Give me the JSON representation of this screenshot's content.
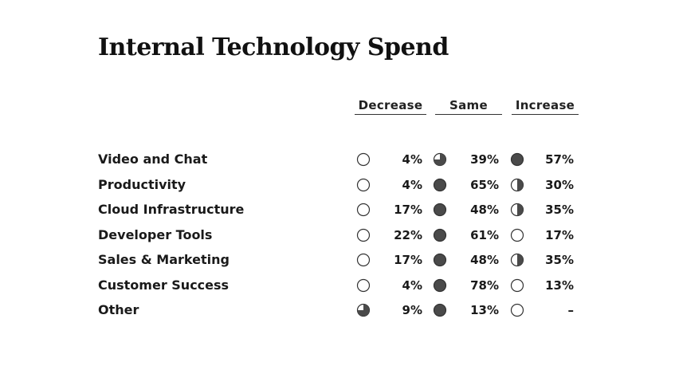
{
  "title": "Internal Technology Spend",
  "columns": [
    "Decrease",
    "Same",
    "Increase"
  ],
  "colors": {
    "fill": "#4a4a4a",
    "stroke": "#333333"
  },
  "chart_data": {
    "type": "table",
    "title": "Internal Technology Spend",
    "columns": [
      "Decrease",
      "Same",
      "Increase"
    ],
    "rows": [
      {
        "label": "Video and Chat",
        "values": [
          "4%",
          "39%",
          "57%"
        ],
        "icons": [
          "empty",
          "three-quarter",
          "full"
        ]
      },
      {
        "label": "Productivity",
        "values": [
          "4%",
          "65%",
          "30%"
        ],
        "icons": [
          "empty",
          "full",
          "half"
        ]
      },
      {
        "label": "Cloud Infrastructure",
        "values": [
          "17%",
          "48%",
          "35%"
        ],
        "icons": [
          "empty",
          "full",
          "half"
        ]
      },
      {
        "label": "Developer Tools",
        "values": [
          "22%",
          "61%",
          "17%"
        ],
        "icons": [
          "empty",
          "full",
          "empty"
        ]
      },
      {
        "label": "Sales & Marketing",
        "values": [
          "17%",
          "48%",
          "35%"
        ],
        "icons": [
          "empty",
          "full",
          "half"
        ]
      },
      {
        "label": "Customer Success",
        "values": [
          "4%",
          "78%",
          "13%"
        ],
        "icons": [
          "empty",
          "full",
          "empty"
        ]
      },
      {
        "label": "Other",
        "values": [
          "9%",
          "13%",
          "–"
        ],
        "icons": [
          "three-quarter",
          "full",
          "empty"
        ]
      }
    ]
  }
}
